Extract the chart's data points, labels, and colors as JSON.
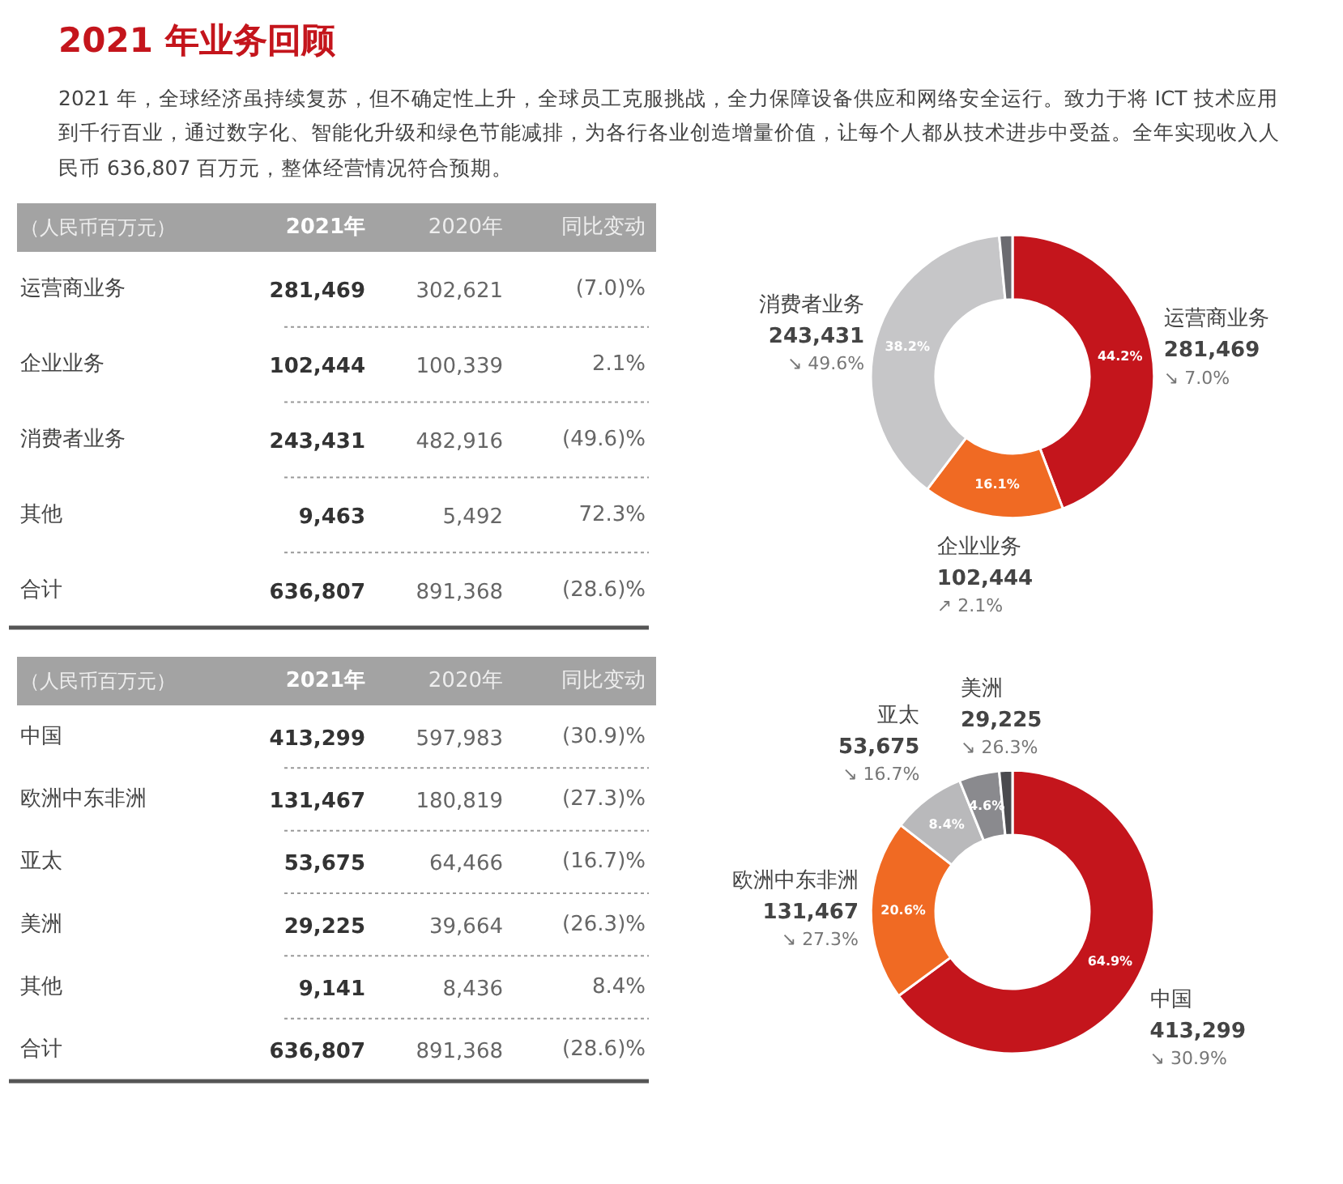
{
  "chart_data": [
    {
      "type": "other",
      "title": "2021 年业务回顾",
      "subtitle": "2021 年，全球经济虽持续复苏，但不确定性上升，全球员工克服挑战，全力保障设备供应和网络安全运行。致力于将 ICT 技术应用到千行百业，通过数字化、智能化升级和绿色节能减排，为各行各业创造增量价值，让每个人都从技术进步中受益。全年实现收入人民币 636,807 百万元，整体经营情况符合预期。",
      "ylabel": "（人民币百万元）",
      "categories": [
        "运营商业务",
        "企业业务",
        "消费者业务",
        "其他",
        "合计"
      ],
      "series": [
        {
          "name": "2021年",
          "values": [
            null,
            null,
            null,
            null,
            null
          ],
          "value_labels": [
            "281,469",
            "102,444",
            "243,431",
            "9,463",
            "636,807"
          ]
        },
        {
          "name": "2020年",
          "values": [
            null,
            null,
            null,
            null,
            null
          ],
          "value_labels": [
            "302,621",
            "100,339",
            "482,916",
            "5,492",
            "891,368"
          ]
        },
        {
          "name": "同比变动",
          "values": [
            null,
            null,
            null,
            null,
            null
          ],
          "value_labels": [
            "(7.0)%",
            "2.1%",
            "(49.6)%",
            "72.3%",
            "(28.6)%"
          ]
        }
      ]
    },
    {
      "type": "donut",
      "categories": [
        "运营商业务",
        "企业业务",
        "消费者业务",
        null
      ],
      "values": [
        44.2,
        16.1,
        38.2,
        1.5
      ],
      "colors": [
        "#c4151c",
        "#f06a23",
        "#c6c6c8",
        "#6b6b70"
      ],
      "value_labels": [
        "44.2%",
        "16.1%",
        "38.2%",
        null
      ],
      "annotations": [
        "281,469\n↘ 7.0%",
        "102,444\n↗ 2.1%",
        "243,431\n↘ 49.6%"
      ]
    },
    {
      "type": "other",
      "ylabel": "（人民币百万元）",
      "categories": [
        "中国",
        "欧洲中东非洲",
        "亚太",
        "美洲",
        "其他",
        "合计"
      ],
      "series": [
        {
          "name": "2021年",
          "values": [
            null,
            null,
            null,
            null,
            null,
            null
          ],
          "value_labels": [
            "413,299",
            "131,467",
            "53,675",
            "29,225",
            "9,141",
            "636,807"
          ]
        },
        {
          "name": "2020年",
          "values": [
            null,
            null,
            null,
            null,
            null,
            null
          ],
          "value_labels": [
            "597,983",
            "180,819",
            "64,466",
            "39,664",
            "8,436",
            "891,368"
          ]
        },
        {
          "name": "同比变动",
          "values": [
            null,
            null,
            null,
            null,
            null,
            null
          ],
          "value_labels": [
            "(30.9)%",
            "(27.3)%",
            "(16.7)%",
            "(26.3)%",
            "8.4%",
            "(28.6)%"
          ]
        }
      ]
    },
    {
      "type": "donut",
      "categories": [
        "中国",
        "欧洲中东非洲",
        "亚太",
        "美洲",
        null
      ],
      "values": [
        64.9,
        20.6,
        8.4,
        4.6,
        1.5
      ],
      "colors": [
        "#c4151c",
        "#f06a23",
        "#b9b9bb",
        "#8a8a8e",
        "#4a4a4e"
      ],
      "value_labels": [
        "64.9%",
        "20.6%",
        "8.4%",
        "4.6%",
        null
      ],
      "annotations": [
        "413,299\n↘ 30.9%",
        "131,467\n↘ 27.3%",
        "53,675\n↘ 16.7%",
        "29,225\n↘ 26.3%"
      ]
    }
  ]
}
